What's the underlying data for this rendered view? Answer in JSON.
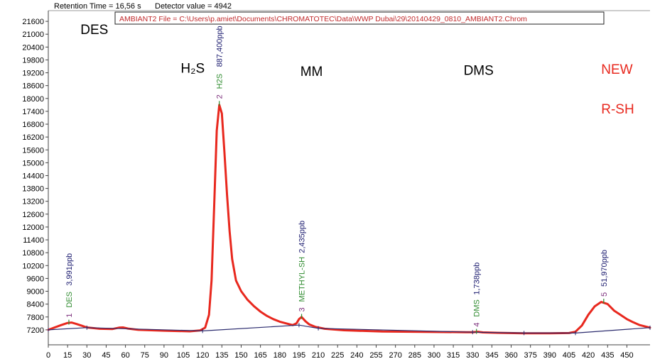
{
  "status_bar": {
    "retention_text": "Retention Time = 16,56 s",
    "detector_text": "Detector value = 4942",
    "file_text": "AMBIANT2 File = C:\\Users\\p.amiet\\Documents\\CHROMATOTEC\\Data\\WWP Dubai\\29\\20140429_0810_AMBIANT2.Chrom"
  },
  "region_labels": [
    {
      "text": "DES",
      "x": 25,
      "y": 21000,
      "color": "#000000"
    },
    {
      "text": "H₂S",
      "x": 103,
      "y": 19200,
      "color": "#000000"
    },
    {
      "text": "MM",
      "x": 196,
      "y": 19050,
      "color": "#000000"
    },
    {
      "text": "DMS",
      "x": 323,
      "y": 19100,
      "color": "#000000"
    },
    {
      "text": "NEW",
      "x": 430,
      "y": 19150,
      "color": "#e8281e"
    },
    {
      "text": "R-SH",
      "x": 430,
      "y": 17300,
      "color": "#e8281e"
    }
  ],
  "chart_data": {
    "type": "line",
    "x_ticks": [
      0,
      15,
      30,
      45,
      60,
      75,
      90,
      105,
      120,
      135,
      150,
      165,
      180,
      195,
      210,
      225,
      240,
      255,
      270,
      285,
      300,
      315,
      330,
      345,
      360,
      375,
      390,
      405,
      420,
      435,
      450
    ],
    "y_ticks": [
      7200,
      7800,
      8400,
      9000,
      9600,
      10200,
      10800,
      11400,
      12000,
      12600,
      13200,
      13800,
      14400,
      15000,
      15600,
      16200,
      16800,
      17400,
      18000,
      18600,
      19200,
      19800,
      20400,
      21000,
      21600
    ],
    "xlim": [
      0,
      468
    ],
    "ylim": [
      6500,
      22100
    ],
    "series": [
      {
        "color": "#e8281e",
        "points": [
          [
            0,
            7200
          ],
          [
            5,
            7310
          ],
          [
            10,
            7420
          ],
          [
            15,
            7520
          ],
          [
            18,
            7540
          ],
          [
            22,
            7470
          ],
          [
            26,
            7390
          ],
          [
            30,
            7310
          ],
          [
            40,
            7250
          ],
          [
            50,
            7240
          ],
          [
            55,
            7300
          ],
          [
            58,
            7310
          ],
          [
            62,
            7260
          ],
          [
            70,
            7200
          ],
          [
            90,
            7160
          ],
          [
            110,
            7130
          ],
          [
            118,
            7170
          ],
          [
            122,
            7300
          ],
          [
            125,
            7900
          ],
          [
            127,
            9500
          ],
          [
            129,
            13000
          ],
          [
            131,
            16500
          ],
          [
            133,
            17700
          ],
          [
            135,
            17300
          ],
          [
            137,
            15500
          ],
          [
            139,
            13500
          ],
          [
            141,
            11800
          ],
          [
            143,
            10500
          ],
          [
            146,
            9500
          ],
          [
            150,
            9000
          ],
          [
            155,
            8600
          ],
          [
            160,
            8300
          ],
          [
            165,
            8050
          ],
          [
            170,
            7850
          ],
          [
            175,
            7700
          ],
          [
            180,
            7580
          ],
          [
            185,
            7500
          ],
          [
            190,
            7420
          ],
          [
            193,
            7500
          ],
          [
            195,
            7700
          ],
          [
            197,
            7800
          ],
          [
            200,
            7600
          ],
          [
            203,
            7450
          ],
          [
            208,
            7330
          ],
          [
            215,
            7250
          ],
          [
            230,
            7180
          ],
          [
            260,
            7120
          ],
          [
            300,
            7100
          ],
          [
            325,
            7090
          ],
          [
            330,
            7090
          ],
          [
            334,
            7110
          ],
          [
            338,
            7080
          ],
          [
            350,
            7060
          ],
          [
            370,
            7040
          ],
          [
            390,
            7040
          ],
          [
            405,
            7050
          ],
          [
            410,
            7110
          ],
          [
            415,
            7400
          ],
          [
            420,
            7900
          ],
          [
            425,
            8300
          ],
          [
            430,
            8500
          ],
          [
            435,
            8400
          ],
          [
            440,
            8100
          ],
          [
            445,
            7900
          ],
          [
            450,
            7700
          ],
          [
            455,
            7550
          ],
          [
            460,
            7420
          ],
          [
            468,
            7300
          ]
        ]
      },
      {
        "color": "#2b2b6e",
        "points": [
          [
            0,
            7200
          ],
          [
            30,
            7300
          ],
          [
            120,
            7150
          ],
          [
            195,
            7420
          ],
          [
            210,
            7270
          ],
          [
            330,
            7090
          ],
          [
            370,
            7050
          ],
          [
            410,
            7050
          ],
          [
            468,
            7300
          ]
        ]
      }
    ],
    "peaks": [
      {
        "number": "1",
        "name": "DES",
        "concentration": "3,991ppb",
        "x": 16,
        "y": 7540
      },
      {
        "number": "2",
        "name": "H2S",
        "concentration": "887,400ppb",
        "x": 133,
        "y": 17750
      },
      {
        "number": "3",
        "name": "METHYL-SH",
        "concentration": "2,435ppb",
        "x": 197,
        "y": 7810
      },
      {
        "number": "4",
        "name": "DMS",
        "concentration": "1,738ppb",
        "x": 333,
        "y": 7110
      },
      {
        "number": "5",
        "name": "",
        "concentration": "51,970ppb",
        "x": 432,
        "y": 8520
      }
    ]
  }
}
